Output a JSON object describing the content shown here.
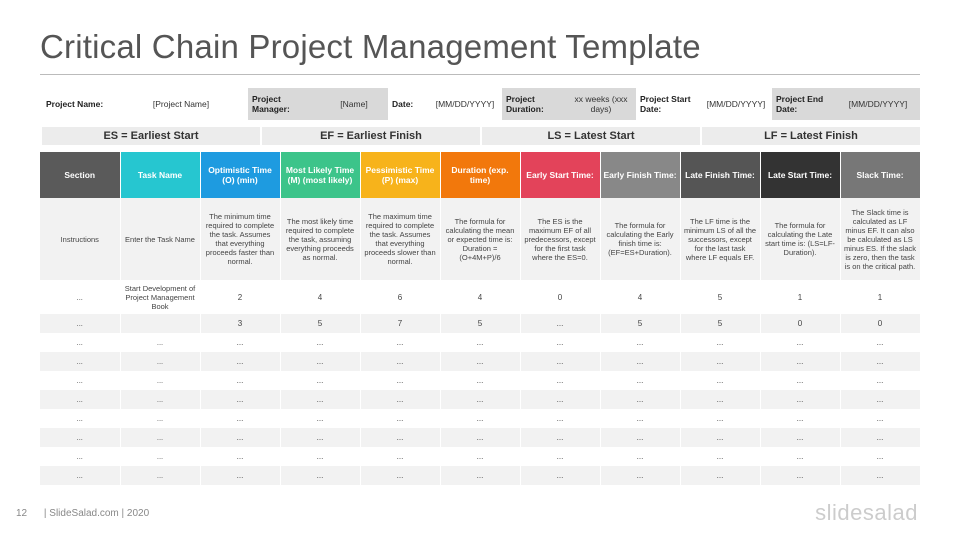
{
  "title": "Critical Chain Project Management Template",
  "info": {
    "project_name_label": "Project Name:",
    "project_name_value": "[Project Name]",
    "manager_label": "Project Manager:",
    "manager_value": "[Name]",
    "date_label": "Date:",
    "date_value": "[MM/DD/YYYY]",
    "duration_label": "Project Duration:",
    "duration_value": "xx weeks (xxx days)",
    "start_label": "Project Start Date:",
    "start_value": "[MM/DD/YYYY]",
    "end_label": "Project End Date:",
    "end_value": "[MM/DD/YYYY]"
  },
  "legend": [
    "ES = Earliest Start",
    "EF = Earliest Finish",
    "LS = Latest Start",
    "LF = Latest Finish"
  ],
  "colors": {
    "section": "#5a5a5a",
    "task": "#26c6d0",
    "optimistic": "#1e9be0",
    "likely": "#3cc48a",
    "pessimistic": "#f7b31b",
    "duration": "#f2780c",
    "early_start": "#e3435a",
    "early_finish": "#888888",
    "late_finish": "#555555",
    "late_start": "#333333",
    "slack": "#777777"
  },
  "headers": [
    "Section",
    "Task Name",
    "Optimistic Time (O) (min)",
    "Most Likely Time (M) (most likely)",
    "Pessimistic Time (P) (max)",
    "Duration (exp. time)",
    "Early Start Time:",
    "Early Finish Time:",
    "Late Finish Time:",
    "Late Start Time:",
    "Slack Time:"
  ],
  "instructions": [
    "Instructions",
    "Enter the Task Name",
    "The minimum time required to complete the task. Assumes that everything proceeds faster than normal.",
    "The most likely time required to complete the task, assuming everything proceeds as normal.",
    "The maximum time required to complete the task. Assumes that everything proceeds slower than normal.",
    "The formula for calculating the mean or expected time is: Duration = (O+4M+P)/6",
    "The ES is the maximum EF of all predecessors, except for the first task where the ES=0.",
    "The formula for calculating the Early finish time is: (EF=ES+Duration).",
    "The LF time is the minimum LS of all the successors, except for the last task where LF equals EF.",
    "The formula for calculating the Late start time is: (LS=LF-Duration).",
    "The Slack time is calculated as LF minus EF. It can also be calculated as LS minus ES. If the slack is zero, then the task is on the critical path."
  ],
  "rows": [
    [
      "...",
      "Start Development of Project Management Book",
      "2",
      "4",
      "6",
      "4",
      "0",
      "4",
      "5",
      "1",
      "1"
    ],
    [
      "...",
      "",
      "3",
      "5",
      "7",
      "5",
      "...",
      "5",
      "5",
      "0",
      "0"
    ],
    [
      "...",
      "...",
      "...",
      "...",
      "...",
      "...",
      "...",
      "...",
      "...",
      "...",
      "..."
    ],
    [
      "...",
      "...",
      "...",
      "...",
      "...",
      "...",
      "...",
      "...",
      "...",
      "...",
      "..."
    ],
    [
      "...",
      "...",
      "...",
      "...",
      "...",
      "...",
      "...",
      "...",
      "...",
      "...",
      "..."
    ],
    [
      "...",
      "...",
      "...",
      "...",
      "...",
      "...",
      "...",
      "...",
      "...",
      "...",
      "..."
    ],
    [
      "...",
      "...",
      "...",
      "...",
      "...",
      "...",
      "...",
      "...",
      "...",
      "...",
      "..."
    ],
    [
      "...",
      "...",
      "...",
      "...",
      "...",
      "...",
      "...",
      "...",
      "...",
      "...",
      "..."
    ],
    [
      "...",
      "...",
      "...",
      "...",
      "...",
      "...",
      "...",
      "...",
      "...",
      "...",
      "..."
    ],
    [
      "...",
      "...",
      "...",
      "...",
      "...",
      "...",
      "...",
      "...",
      "...",
      "...",
      "..."
    ]
  ],
  "footer": {
    "page": "12",
    "credit": "| SlideSalad.com | 2020",
    "logo": "slidesalad"
  }
}
